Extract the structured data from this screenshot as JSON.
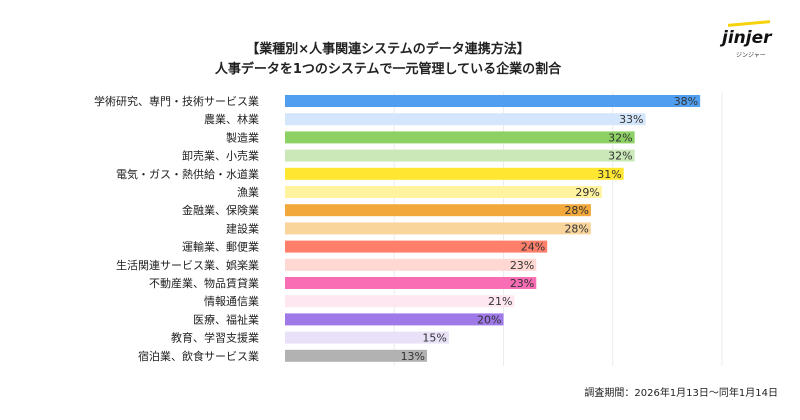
{
  "title_line1": "【業種別×人事関連システムのデータ連携方法】",
  "title_line2": "人事データを1つのシステムで一元管理している企業の割合",
  "logo": {
    "text": "jinjer",
    "sub": "ジンジャー"
  },
  "footnote": "調査期間：2026年1月13日〜同年1月14日",
  "chart_data": {
    "type": "bar",
    "orientation": "horizontal",
    "title": "人事データを1つのシステムで一元管理している企業の割合",
    "xlim": [
      0,
      40
    ],
    "grid": true,
    "unit": "%",
    "categories": [
      "学術研究、専門・技術サービス業",
      "農業、林業",
      "製造業",
      "卸売業、小売業",
      "電気・ガス・熱供給・水道業",
      "漁業",
      "金融業、保険業",
      "建設業",
      "運輸業、郵便業",
      "生活関連サービス業、娯楽業",
      "不動産業、物品賃貸業",
      "情報通信業",
      "医療、福祉業",
      "教育、学習支援業",
      "宿泊業、飲食サービス業"
    ],
    "values": [
      38,
      33,
      32,
      32,
      31,
      29,
      28,
      28,
      24,
      23,
      23,
      21,
      20,
      15,
      13
    ],
    "labels": [
      "38%",
      "33%",
      "32%",
      "32%",
      "31%",
      "29%",
      "28%",
      "28%",
      "24%",
      "23%",
      "23%",
      "21%",
      "20%",
      "15%",
      "13%"
    ],
    "colors": [
      "#4f9ef0",
      "#d4e6fb",
      "#8dd063",
      "#cbe9b8",
      "#ffe631",
      "#fff3a0",
      "#f2a83a",
      "#f9d59c",
      "#ff7f6b",
      "#ffd7d3",
      "#f96db5",
      "#ffe7f2",
      "#a079e8",
      "#e8e1f8",
      "#b2b2b2"
    ]
  }
}
